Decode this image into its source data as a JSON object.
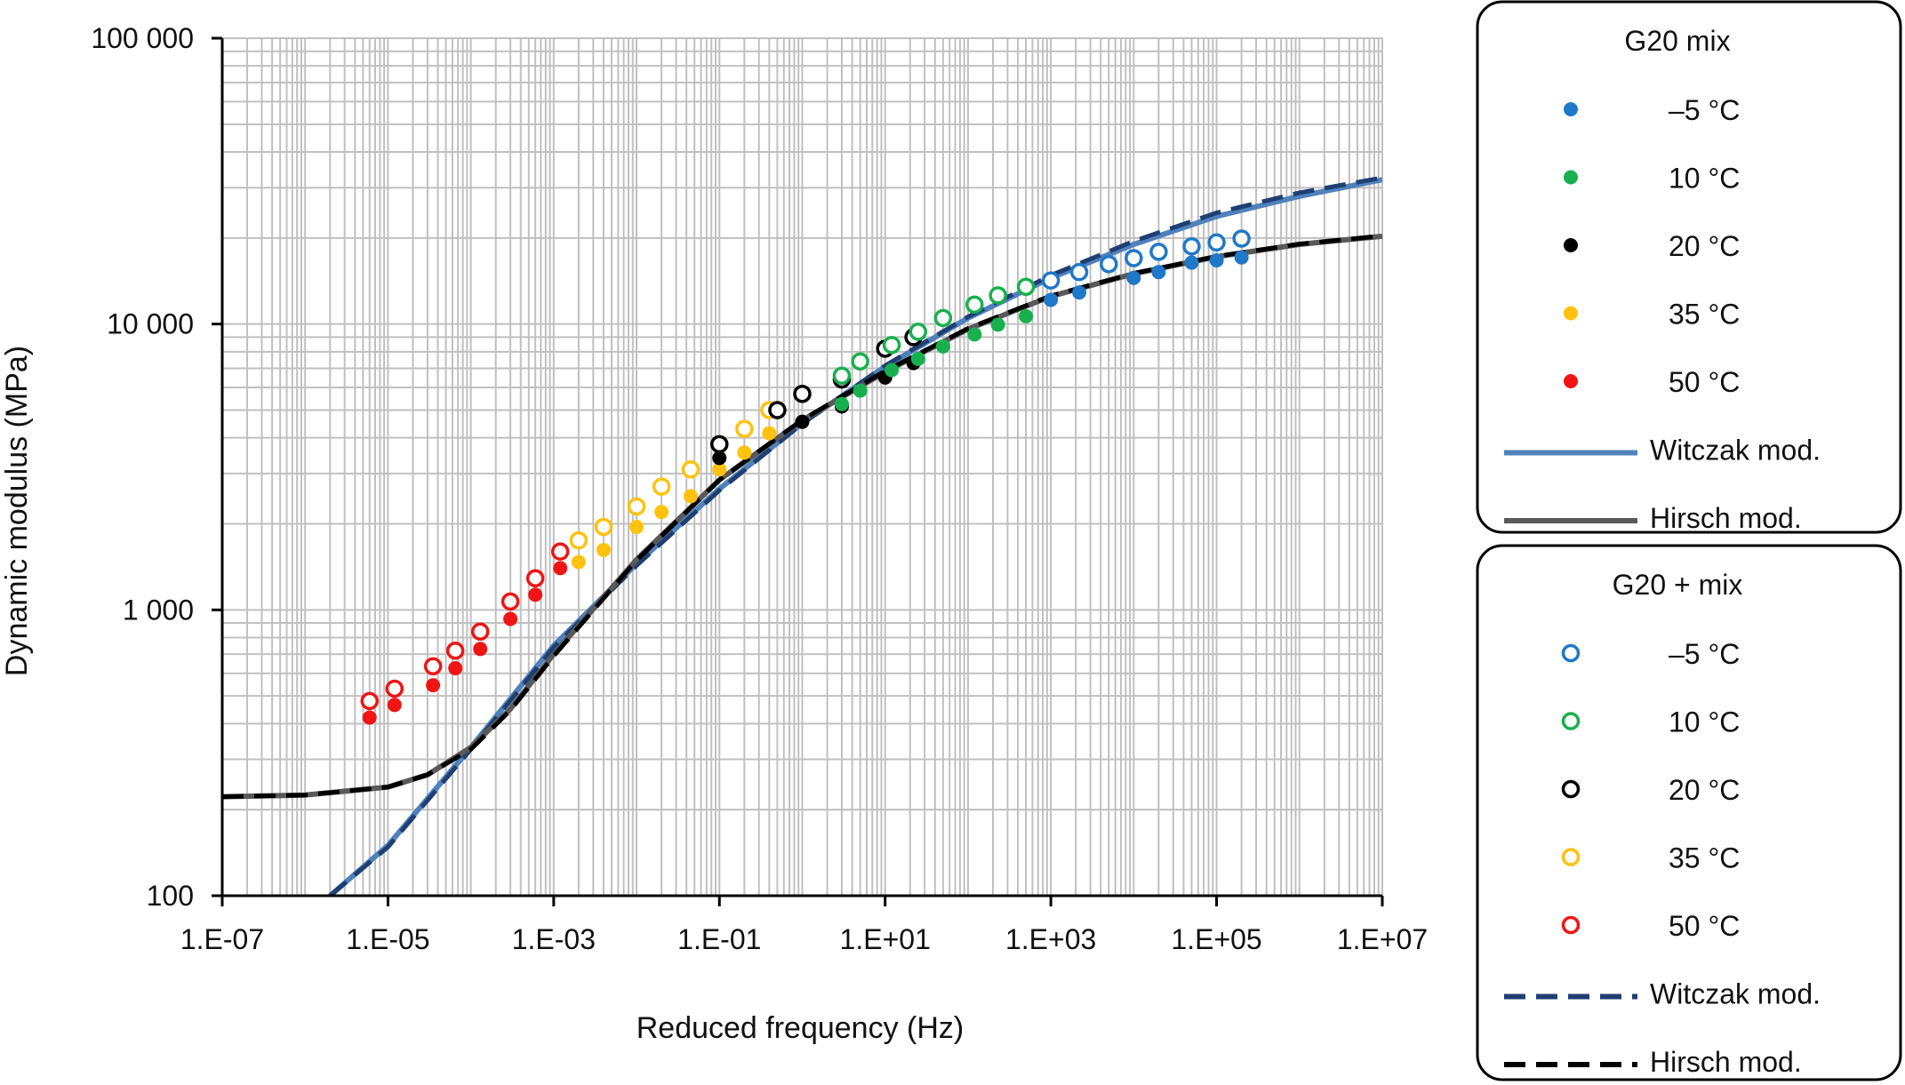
{
  "chart_data": {
    "type": "scatter",
    "xlabel": "Reduced frequency (Hz)",
    "ylabel": "Dynamic modulus (MPa)",
    "x_scale": "log",
    "y_scale": "log",
    "xlim": [
      1e-07,
      10000000.0
    ],
    "ylim": [
      100,
      100000
    ],
    "grid": true,
    "legend_placement": "right",
    "x_ticks": [
      {
        "value": 1e-07,
        "label": "1.E-07"
      },
      {
        "value": 1e-05,
        "label": "1.E-05"
      },
      {
        "value": 0.001,
        "label": "1.E-03"
      },
      {
        "value": 0.1,
        "label": "1.E-01"
      },
      {
        "value": 10.0,
        "label": "1.E+01"
      },
      {
        "value": 1000.0,
        "label": "1.E+03"
      },
      {
        "value": 100000.0,
        "label": "1.E+05"
      },
      {
        "value": 10000000.0,
        "label": "1.E+07"
      }
    ],
    "y_ticks": [
      {
        "value": 100,
        "label": "100"
      },
      {
        "value": 1000,
        "label": "1 000"
      },
      {
        "value": 10000,
        "label": "10 000"
      },
      {
        "value": 100000,
        "label": "100 000"
      }
    ],
    "colors": {
      "-5": "#1f78c8",
      "10": "#18b04e",
      "20": "#000000",
      "35": "#ffc20e",
      "50": "#f01414",
      "witczak_solid": "#4f81bd",
      "witczak_dashed": "#1f3f73",
      "hirsch_solid": "#595959",
      "hirsch_dashed": "#000000"
    },
    "legend_groups": [
      {
        "title": "G20 mix",
        "entries": [
          {
            "label": "–5 °C",
            "marker": "filled",
            "color_key": "-5"
          },
          {
            "label": "10 °C",
            "marker": "filled",
            "color_key": "10"
          },
          {
            "label": "20 °C",
            "marker": "filled",
            "color_key": "20"
          },
          {
            "label": "35 °C",
            "marker": "filled",
            "color_key": "35"
          },
          {
            "label": "50 °C",
            "marker": "filled",
            "color_key": "50"
          },
          {
            "label": "Witczak mod.",
            "marker": "solid-line",
            "color_key": "witczak_solid"
          },
          {
            "label": "Hirsch mod.",
            "marker": "solid-line",
            "color_key": "hirsch_solid"
          }
        ]
      },
      {
        "title": "G20 + mix",
        "entries": [
          {
            "label": "–5 °C",
            "marker": "open",
            "color_key": "-5"
          },
          {
            "label": "10 °C",
            "marker": "open",
            "color_key": "10"
          },
          {
            "label": "20 °C",
            "marker": "open",
            "color_key": "20"
          },
          {
            "label": "35 °C",
            "marker": "open",
            "color_key": "35"
          },
          {
            "label": "50 °C",
            "marker": "open",
            "color_key": "50"
          },
          {
            "label": "Witczak mod.",
            "marker": "dashed-line",
            "color_key": "witczak_dashed"
          },
          {
            "label": "Hirsch mod.",
            "marker": "dashed-line",
            "color_key": "hirsch_dashed"
          }
        ]
      }
    ],
    "series": [
      {
        "mix": "G20 mix",
        "temp": "50 °C",
        "color_key": "50",
        "marker": "filled",
        "x": [
          6e-06,
          1.2e-05,
          3.5e-05,
          6.5e-05,
          0.00013,
          0.0003,
          0.0006,
          0.0012
        ],
        "y": [
          420,
          465,
          545,
          625,
          730,
          930,
          1130,
          1400
        ]
      },
      {
        "mix": "G20 mix",
        "temp": "35 °C",
        "color_key": "35",
        "marker": "filled",
        "x": [
          0.002,
          0.004,
          0.01,
          0.02,
          0.045,
          0.1,
          0.2,
          0.4
        ],
        "y": [
          1470,
          1620,
          1950,
          2200,
          2500,
          3100,
          3550,
          4150
        ]
      },
      {
        "mix": "G20 mix",
        "temp": "20 °C",
        "color_key": "20",
        "marker": "filled",
        "x": [
          0.1,
          1.0,
          3.0,
          10.0,
          22.0
        ],
        "y": [
          3400,
          4550,
          5150,
          6500,
          7300
        ]
      },
      {
        "mix": "G20 mix",
        "temp": "10 °C",
        "color_key": "10",
        "marker": "filled",
        "x": [
          3.0,
          5.0,
          12.0,
          25.0,
          50.0,
          120.0,
          230.0,
          500.0
        ],
        "y": [
          5250,
          5850,
          6900,
          7550,
          8350,
          9200,
          9950,
          10650
        ]
      },
      {
        "mix": "G20 mix",
        "temp": "–5 °C",
        "color_key": "-5",
        "marker": "filled",
        "x": [
          1000.0,
          2200.0,
          10000.0,
          20000.0,
          50000.0,
          100000.0,
          200000.0
        ],
        "y": [
          12150,
          12900,
          14500,
          15200,
          16400,
          16700,
          17100
        ]
      },
      {
        "mix": "G20 + mix",
        "temp": "50 °C",
        "color_key": "50",
        "marker": "open",
        "x": [
          6e-06,
          1.2e-05,
          3.5e-05,
          6.5e-05,
          0.00013,
          0.0003,
          0.0006,
          0.0012
        ],
        "y": [
          480,
          530,
          635,
          720,
          840,
          1070,
          1290,
          1600
        ]
      },
      {
        "mix": "G20 + mix",
        "temp": "35 °C",
        "color_key": "35",
        "marker": "open",
        "x": [
          0.002,
          0.004,
          0.01,
          0.02,
          0.045,
          0.1,
          0.2,
          0.4
        ],
        "y": [
          1750,
          1950,
          2300,
          2700,
          3100,
          3800,
          4300,
          5000
        ]
      },
      {
        "mix": "G20 + mix",
        "temp": "20 °C",
        "color_key": "20",
        "marker": "open",
        "x": [
          0.1,
          0.5,
          1.0,
          3.0,
          10.0,
          22.0
        ],
        "y": [
          3800,
          5000,
          5700,
          6400,
          8200,
          9000
        ]
      },
      {
        "mix": "G20 + mix",
        "temp": "10 °C",
        "color_key": "10",
        "marker": "open",
        "x": [
          3.0,
          5.0,
          12.0,
          25.0,
          50.0,
          120.0,
          230.0,
          500.0
        ],
        "y": [
          6600,
          7400,
          8450,
          9400,
          10500,
          11700,
          12600,
          13500
        ]
      },
      {
        "mix": "G20 + mix",
        "temp": "–5 °C",
        "color_key": "-5",
        "marker": "open",
        "x": [
          1000.0,
          2200.0,
          5000.0,
          10000.0,
          20000.0,
          50000.0,
          100000.0,
          200000.0
        ],
        "y": [
          14200,
          15200,
          16200,
          17000,
          17900,
          18700,
          19300,
          19900
        ]
      },
      {
        "name": "Witczak mod.",
        "mix": "G20 mix",
        "type": "line",
        "style": "solid",
        "color_key": "witczak_solid",
        "x": [
          2e-06,
          1e-05,
          0.0001,
          0.001,
          0.01,
          0.1,
          1.0,
          10.0,
          100.0,
          1000.0,
          10000.0,
          100000.0,
          1000000.0,
          10000000.0
        ],
        "y": [
          100,
          150,
          330,
          750,
          1450,
          2650,
          4500,
          7100,
          10500,
          14500,
          19000,
          23800,
          28000,
          32000
        ]
      },
      {
        "name": "Witczak mod.",
        "mix": "G20 + mix",
        "type": "line",
        "style": "dashed",
        "color_key": "witczak_dashed",
        "x": [
          2e-06,
          1e-05,
          0.0001,
          0.001,
          0.01,
          0.1,
          1.0,
          10.0,
          100.0,
          1000.0,
          10000.0,
          100000.0,
          1000000.0,
          10000000.0
        ],
        "y": [
          100,
          148,
          325,
          740,
          1430,
          2620,
          4480,
          7150,
          10600,
          14800,
          19500,
          24500,
          28800,
          32500
        ]
      },
      {
        "name": "Hirsch mod.",
        "mix": "G20 mix",
        "type": "line",
        "style": "solid",
        "color_key": "hirsch_solid",
        "x": [
          1e-07,
          1e-06,
          1e-05,
          3e-05,
          0.0001,
          0.0003,
          0.001,
          0.01,
          0.1,
          1.0,
          10.0,
          100.0,
          1000.0,
          10000.0,
          100000.0,
          1000000.0,
          10000000.0
        ],
        "y": [
          222,
          225,
          240,
          265,
          330,
          450,
          700,
          1500,
          2850,
          4600,
          6800,
          9600,
          12500,
          15000,
          17200,
          19000,
          20300
        ]
      },
      {
        "name": "Hirsch mod.",
        "mix": "G20 + mix",
        "type": "line",
        "style": "dashed",
        "color_key": "hirsch_dashed",
        "x": [
          1e-07,
          1e-06,
          1e-05,
          3e-05,
          0.0001,
          0.0003,
          0.001,
          0.01,
          0.1,
          1.0,
          10.0,
          100.0,
          1000.0,
          10000.0,
          100000.0,
          1000000.0,
          10000000.0
        ],
        "y": [
          222,
          225,
          240,
          265,
          325,
          445,
          690,
          1490,
          2850,
          4620,
          6850,
          9650,
          12550,
          15050,
          17250,
          19050,
          20350
        ]
      }
    ]
  }
}
